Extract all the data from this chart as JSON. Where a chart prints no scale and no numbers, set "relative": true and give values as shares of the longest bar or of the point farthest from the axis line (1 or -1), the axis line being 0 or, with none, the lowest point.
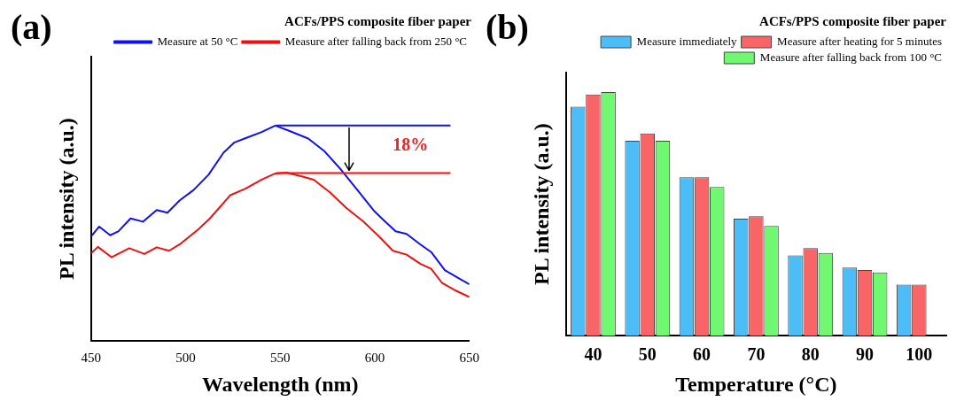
{
  "chart_data": [
    {
      "type": "line",
      "title": "ACFs/PPS composite fiber paper",
      "xlabel": "Wavelength (nm)",
      "ylabel": "PL intensity (a.u.)",
      "relative": true,
      "xlim": [
        450,
        650
      ],
      "xticks": [
        450,
        500,
        550,
        600,
        650
      ],
      "grid": false,
      "legend": "top right",
      "marker": "none",
      "line_style": "solid",
      "series": [
        {
          "name": "Measure at 50 °C",
          "color": "#1010f0",
          "x": [
            450,
            454.3,
            460.1,
            464.4,
            470.9,
            477.4,
            484.7,
            490.4,
            496.9,
            504.2,
            512.1,
            520,
            525.8,
            533,
            540.2,
            547.4,
            554.7,
            564.8,
            573.5,
            582.1,
            590.8,
            599.5,
            605.2,
            611,
            616.8,
            624,
            629.8,
            637,
            642.8,
            650
          ],
          "values": [
            0.485,
            0.531,
            0.491,
            0.509,
            0.569,
            0.554,
            0.608,
            0.596,
            0.653,
            0.701,
            0.772,
            0.874,
            0.922,
            0.946,
            0.97,
            1,
            0.976,
            0.94,
            0.88,
            0.796,
            0.701,
            0.605,
            0.557,
            0.509,
            0.497,
            0.449,
            0.413,
            0.329,
            0.299,
            0.263
          ]
        },
        {
          "name": "Measure after falling back from 250 °C",
          "color": "#f01010",
          "x": [
            450,
            453.6,
            460.8,
            470.2,
            478.2,
            484.7,
            491.2,
            496.9,
            507,
            512.8,
            523.6,
            531.6,
            540.2,
            547.4,
            553.2,
            560.5,
            567.7,
            576.4,
            585,
            593.7,
            602.3,
            609.6,
            616.8,
            624,
            629.8,
            635.6,
            642.8,
            650
          ],
          "values": [
            0.407,
            0.437,
            0.389,
            0.431,
            0.404,
            0.435,
            0.419,
            0.449,
            0.521,
            0.569,
            0.677,
            0.707,
            0.749,
            0.778,
            0.782,
            0.766,
            0.749,
            0.689,
            0.617,
            0.557,
            0.485,
            0.419,
            0.401,
            0.359,
            0.335,
            0.269,
            0.234,
            0.204
          ]
        }
      ],
      "ref_lines": [
        {
          "axis": "y",
          "value": 1,
          "color": "#1010f0"
        },
        {
          "axis": "y",
          "value": 0.78,
          "color": "#f01010"
        }
      ],
      "annotations": [
        "(a)",
        "18%"
      ]
    },
    {
      "type": "bar",
      "title": "ACFs/PPS composite fiber paper",
      "xlabel": "Temperature (°C)",
      "ylabel": "PL intensity (a.u.)",
      "relative": true,
      "grid": false,
      "legend": "top right",
      "categories": [
        "40",
        "50",
        "60",
        "70",
        "80",
        "90",
        "100"
      ],
      "series": [
        {
          "name": "Measure immediately",
          "color": "#4dbdf7",
          "values": [
            0.94,
            0.8,
            0.65,
            0.48,
            0.33,
            0.28,
            0.21
          ]
        },
        {
          "name": "Measure after heating for 5 minutes",
          "color": "#f96566",
          "values": [
            0.99,
            0.83,
            0.65,
            0.49,
            0.36,
            0.27,
            0.21
          ]
        },
        {
          "name": "Measure after falling back from 100 °C",
          "color": "#70f870",
          "values": [
            1,
            0.8,
            0.61,
            0.45,
            0.34,
            0.26,
            null
          ]
        }
      ],
      "annotations": [
        "(b)"
      ]
    }
  ]
}
